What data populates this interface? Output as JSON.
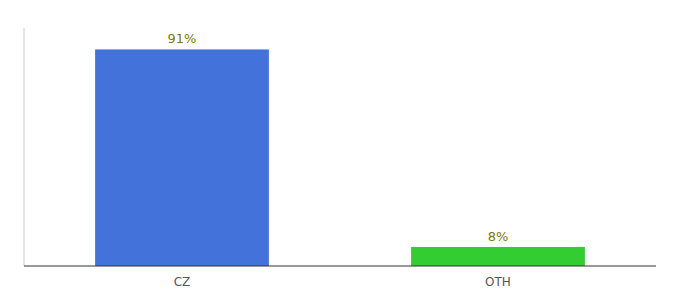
{
  "chart_data": {
    "type": "bar",
    "categories": [
      "CZ",
      "OTH"
    ],
    "values": [
      91,
      8
    ],
    "value_labels": [
      "91%",
      "8%"
    ],
    "colors": [
      "#4472db",
      "#33cc33"
    ],
    "ylim": [
      0,
      100
    ],
    "data_labels": true,
    "tick_labels": "x",
    "grid": false
  }
}
